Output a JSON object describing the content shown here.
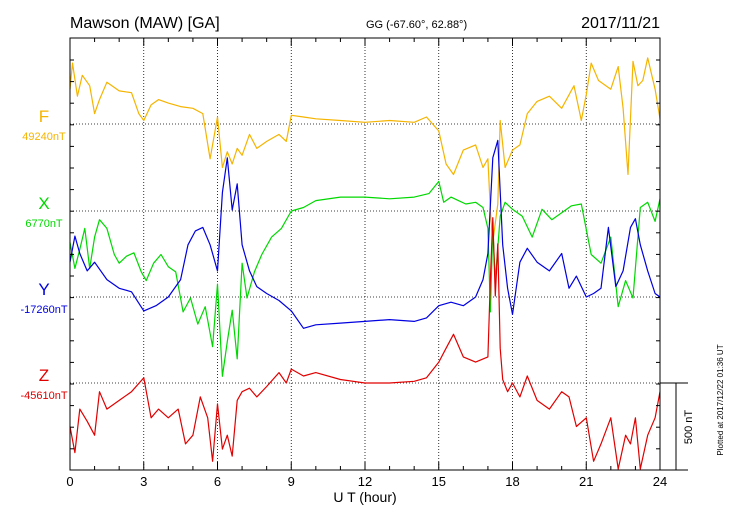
{
  "chart_data": {
    "type": "line",
    "title": "Mawson (MAW)  [GA]",
    "coords": "GG (-67.60°,  62.88°)",
    "date": "2017/11/21",
    "xlabel": "U T (hour)",
    "xlim": [
      0,
      24
    ],
    "xticks": [
      0,
      3,
      6,
      9,
      12,
      15,
      18,
      21,
      24
    ],
    "grid": true,
    "scale_bar": "500 nT",
    "plotted_note": "Plotted at 2017/12/22 01:36 UT",
    "colors": {
      "F": "#f5b400",
      "X": "#00d800",
      "Y": "#0000e0",
      "Z": "#e00000"
    },
    "series": [
      {
        "name": "F",
        "baseline_label": "49240nT",
        "unit": "nT",
        "baseline": 49240,
        "x": [
          0,
          0.1,
          0.3,
          0.5,
          0.8,
          1.0,
          1.2,
          1.5,
          2.0,
          2.5,
          2.8,
          3.0,
          3.3,
          3.6,
          4.0,
          4.5,
          5.0,
          5.4,
          5.7,
          6.0,
          6.2,
          6.4,
          6.6,
          6.8,
          7.0,
          7.3,
          7.6,
          8.0,
          8.5,
          8.8,
          9.0,
          9.5,
          10.0,
          11.0,
          12.0,
          13.0,
          14.0,
          14.5,
          15.0,
          15.3,
          15.6,
          16.0,
          16.5,
          16.8,
          17.0,
          17.1,
          17.2,
          17.3,
          17.4,
          17.5,
          17.7,
          18.0,
          18.3,
          18.6,
          19.0,
          19.5,
          20.0,
          20.5,
          20.8,
          21.0,
          21.2,
          21.5,
          22.0,
          22.3,
          22.5,
          22.7,
          22.9,
          23.1,
          23.3,
          23.5,
          23.8,
          24.0
        ],
        "values": [
          200,
          350,
          160,
          280,
          220,
          60,
          140,
          240,
          190,
          180,
          60,
          20,
          110,
          140,
          120,
          100,
          90,
          60,
          -200,
          40,
          -250,
          -160,
          -230,
          -140,
          -180,
          -60,
          -140,
          -100,
          -60,
          -100,
          50,
          40,
          30,
          20,
          10,
          20,
          10,
          40,
          -40,
          -230,
          -290,
          -150,
          -120,
          -250,
          -200,
          -500,
          -680,
          -570,
          -460,
          20,
          -250,
          -150,
          -120,
          60,
          130,
          160,
          90,
          220,
          20,
          170,
          350,
          250,
          200,
          330,
          90,
          -290,
          360,
          220,
          250,
          380,
          200,
          30
        ]
      },
      {
        "name": "X",
        "baseline_label": "6770nT",
        "unit": "nT",
        "baseline": 6770,
        "x": [
          0,
          0.2,
          0.4,
          0.6,
          0.8,
          1.0,
          1.2,
          1.5,
          1.8,
          2.0,
          2.3,
          2.6,
          2.9,
          3.1,
          3.4,
          3.7,
          4.0,
          4.3,
          4.6,
          4.9,
          5.2,
          5.5,
          5.8,
          6.0,
          6.2,
          6.4,
          6.6,
          6.8,
          7.0,
          7.2,
          7.5,
          7.8,
          8.2,
          8.6,
          9.0,
          9.5,
          10.0,
          11.0,
          12.0,
          13.0,
          14.0,
          14.6,
          15.0,
          15.2,
          15.5,
          15.8,
          16.1,
          16.5,
          16.8,
          17.0,
          17.1,
          17.2,
          17.3,
          17.5,
          17.7,
          18.0,
          18.4,
          18.8,
          19.2,
          19.6,
          20.0,
          20.4,
          20.8,
          21.2,
          21.6,
          22.0,
          22.3,
          22.6,
          22.9,
          23.2,
          23.5,
          23.8,
          24.0
        ],
        "values": [
          -180,
          -330,
          -220,
          -100,
          -330,
          -150,
          -50,
          -100,
          -250,
          -300,
          -260,
          -240,
          -350,
          -400,
          -300,
          -250,
          -320,
          -350,
          -580,
          -500,
          -650,
          -550,
          -780,
          -420,
          -950,
          -750,
          -570,
          -850,
          -300,
          -500,
          -350,
          -250,
          -150,
          -100,
          0,
          20,
          60,
          80,
          80,
          70,
          80,
          100,
          170,
          50,
          80,
          60,
          40,
          50,
          20,
          -100,
          -580,
          -100,
          -400,
          -30,
          50,
          10,
          -30,
          -150,
          10,
          -50,
          -10,
          30,
          40,
          -250,
          -300,
          -150,
          -550,
          -400,
          -500,
          20,
          50,
          -60,
          70
        ]
      },
      {
        "name": "Y",
        "baseline_label": "-17260nT",
        "unit": "nT",
        "baseline": -17260,
        "x": [
          0,
          0.2,
          0.4,
          0.7,
          1.0,
          1.5,
          2.0,
          2.5,
          3.0,
          3.5,
          4.0,
          4.5,
          4.8,
          5.1,
          5.4,
          5.7,
          6.0,
          6.2,
          6.4,
          6.6,
          6.8,
          7.0,
          7.3,
          7.6,
          8.0,
          8.5,
          9.0,
          9.5,
          10.0,
          11.0,
          12.0,
          13.0,
          14.0,
          14.5,
          15.0,
          15.5,
          16.0,
          16.5,
          16.8,
          17.0,
          17.2,
          17.4,
          17.6,
          17.8,
          18.0,
          18.3,
          18.6,
          19.0,
          19.5,
          20.0,
          20.3,
          20.6,
          21.0,
          21.3,
          21.6,
          21.9,
          22.2,
          22.5,
          22.8,
          23.0,
          23.2,
          23.5,
          23.8,
          24.0
        ],
        "values": [
          200,
          350,
          250,
          150,
          200,
          100,
          50,
          30,
          -80,
          -50,
          0,
          100,
          300,
          380,
          400,
          300,
          150,
          600,
          800,
          500,
          650,
          300,
          150,
          60,
          20,
          -20,
          -80,
          -180,
          -160,
          -150,
          -140,
          -130,
          -140,
          -120,
          -50,
          -30,
          -50,
          0,
          100,
          250,
          800,
          900,
          300,
          50,
          -100,
          200,
          280,
          200,
          150,
          250,
          50,
          120,
          0,
          20,
          50,
          400,
          60,
          150,
          400,
          450,
          300,
          150,
          20,
          0
        ]
      },
      {
        "name": "Z",
        "baseline_label": "-45610nT",
        "unit": "nT",
        "baseline": -45610,
        "x": [
          0,
          0.2,
          0.4,
          0.7,
          1.0,
          1.2,
          1.5,
          2.0,
          2.5,
          3.0,
          3.3,
          3.6,
          4.0,
          4.4,
          4.7,
          5.0,
          5.3,
          5.6,
          5.8,
          6.0,
          6.2,
          6.4,
          6.6,
          6.8,
          7.0,
          7.3,
          7.6,
          8.0,
          8.5,
          8.8,
          9.0,
          9.5,
          10.0,
          11.0,
          12.0,
          13.0,
          14.0,
          14.5,
          15.0,
          15.3,
          15.6,
          16.0,
          16.5,
          17.0,
          17.1,
          17.2,
          17.3,
          17.4,
          17.5,
          17.6,
          17.8,
          18.0,
          18.3,
          18.6,
          19.0,
          19.5,
          20.0,
          20.3,
          20.6,
          21.0,
          21.3,
          21.6,
          22.0,
          22.3,
          22.6,
          22.8,
          23.0,
          23.2,
          23.5,
          23.8,
          24.0
        ],
        "values": [
          -250,
          -400,
          -150,
          -220,
          -300,
          -50,
          -150,
          -100,
          -50,
          30,
          -200,
          -150,
          -200,
          -150,
          -350,
          -300,
          -80,
          -200,
          -450,
          -120,
          -380,
          -300,
          -420,
          -100,
          -50,
          -30,
          -80,
          -20,
          60,
          0,
          80,
          40,
          60,
          20,
          0,
          0,
          10,
          30,
          120,
          200,
          280,
          150,
          120,
          150,
          600,
          950,
          500,
          800,
          200,
          20,
          -50,
          0,
          -80,
          40,
          -100,
          -150,
          -50,
          -80,
          -250,
          -200,
          -450,
          -350,
          -200,
          -500,
          -300,
          -350,
          -200,
          -650,
          -300,
          -200,
          -50
        ]
      }
    ]
  }
}
